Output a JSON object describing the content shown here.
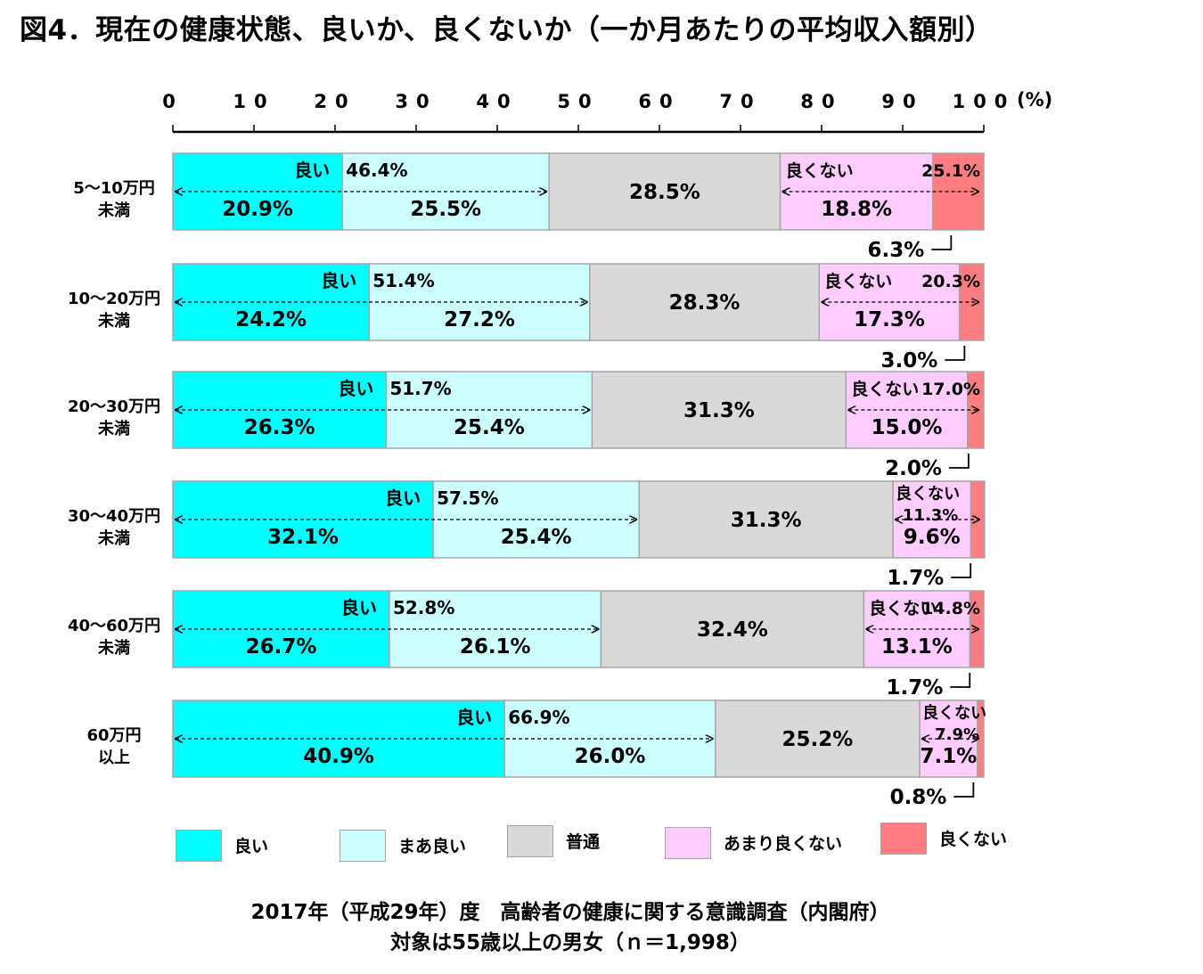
{
  "title": "図4．現在の健康状態、良いか、良くないか（一か月あたりの平均収入額別）",
  "chart_data": {
    "type": "bar",
    "orientation": "horizontal",
    "stacked": true,
    "x_ticks": [
      "0",
      "10",
      "20",
      "30",
      "40",
      "50",
      "60",
      "70",
      "80",
      "90",
      "100"
    ],
    "x_unit": "(%)",
    "xlim": [
      0,
      100
    ],
    "categories": [
      "5〜10万円未満",
      "10〜20万円未満",
      "20〜30万円未満",
      "30〜40万円未満",
      "40〜60万円未満",
      "60万円以上"
    ],
    "category_lines": [
      [
        "5〜10万円",
        "未満"
      ],
      [
        "10〜20万円",
        "未満"
      ],
      [
        "20〜30万円",
        "未満"
      ],
      [
        "30〜40万円",
        "未満"
      ],
      [
        "40〜60万円",
        "未満"
      ],
      [
        "60万円",
        "以上"
      ]
    ],
    "series": [
      {
        "name": "良い",
        "color": "#00ffff",
        "values": [
          20.9,
          24.2,
          26.3,
          32.1,
          26.7,
          40.9
        ]
      },
      {
        "name": "まあ良い",
        "color": "#ccffff",
        "values": [
          25.5,
          27.2,
          25.4,
          25.4,
          26.1,
          26.0
        ]
      },
      {
        "name": "普通",
        "color": "#d9d9d9",
        "values": [
          28.5,
          28.3,
          31.3,
          31.3,
          32.4,
          25.2
        ]
      },
      {
        "name": "あまり良くない",
        "color": "#ffccff",
        "values": [
          18.8,
          17.3,
          15.0,
          9.6,
          13.1,
          7.1
        ]
      },
      {
        "name": "良くない",
        "color": "#ff7c80",
        "values": [
          6.3,
          3.0,
          2.0,
          1.7,
          1.7,
          0.8
        ]
      }
    ],
    "good_group": {
      "label": "良い",
      "values": [
        46.4,
        51.4,
        51.7,
        57.5,
        52.8,
        66.9
      ]
    },
    "bad_group": {
      "label": "良くない",
      "values": [
        25.1,
        20.3,
        17.0,
        11.3,
        14.8,
        7.9
      ]
    },
    "value_labels": [
      [
        "20.9%",
        "25.5%",
        "28.5%",
        "18.8%",
        "6.3%"
      ],
      [
        "24.2%",
        "27.2%",
        "28.3%",
        "17.3%",
        "3.0%"
      ],
      [
        "26.3%",
        "25.4%",
        "31.3%",
        "15.0%",
        "2.0%"
      ],
      [
        "32.1%",
        "25.4%",
        "31.3%",
        "9.6%",
        "1.7%"
      ],
      [
        "26.7%",
        "26.1%",
        "32.4%",
        "13.1%",
        "1.7%"
      ],
      [
        "40.9%",
        "26.0%",
        "25.2%",
        "7.1%",
        "0.8%"
      ]
    ],
    "good_labels": [
      "46.4%",
      "51.4%",
      "51.7%",
      "57.5%",
      "52.8%",
      "66.9%"
    ],
    "bad_labels": [
      "25.1%",
      "20.3%",
      "17.0%",
      "11.3%",
      "14.8%",
      "7.9%"
    ],
    "legend_position": "bottom"
  },
  "legend": [
    {
      "label": "良い",
      "color": "#00ffff"
    },
    {
      "label": "まあ良い",
      "color": "#ccffff"
    },
    {
      "label": "普通",
      "color": "#d9d9d9"
    },
    {
      "label": "あまり良くない",
      "color": "#ffccff"
    },
    {
      "label": "良くない",
      "color": "#ff7c80"
    }
  ],
  "source": {
    "line1": "2017年（平成29年）度　高齢者の健康に関する意識調査（内閣府）",
    "line2": "対象は55歳以上の男女（ｎ＝1,998）"
  }
}
